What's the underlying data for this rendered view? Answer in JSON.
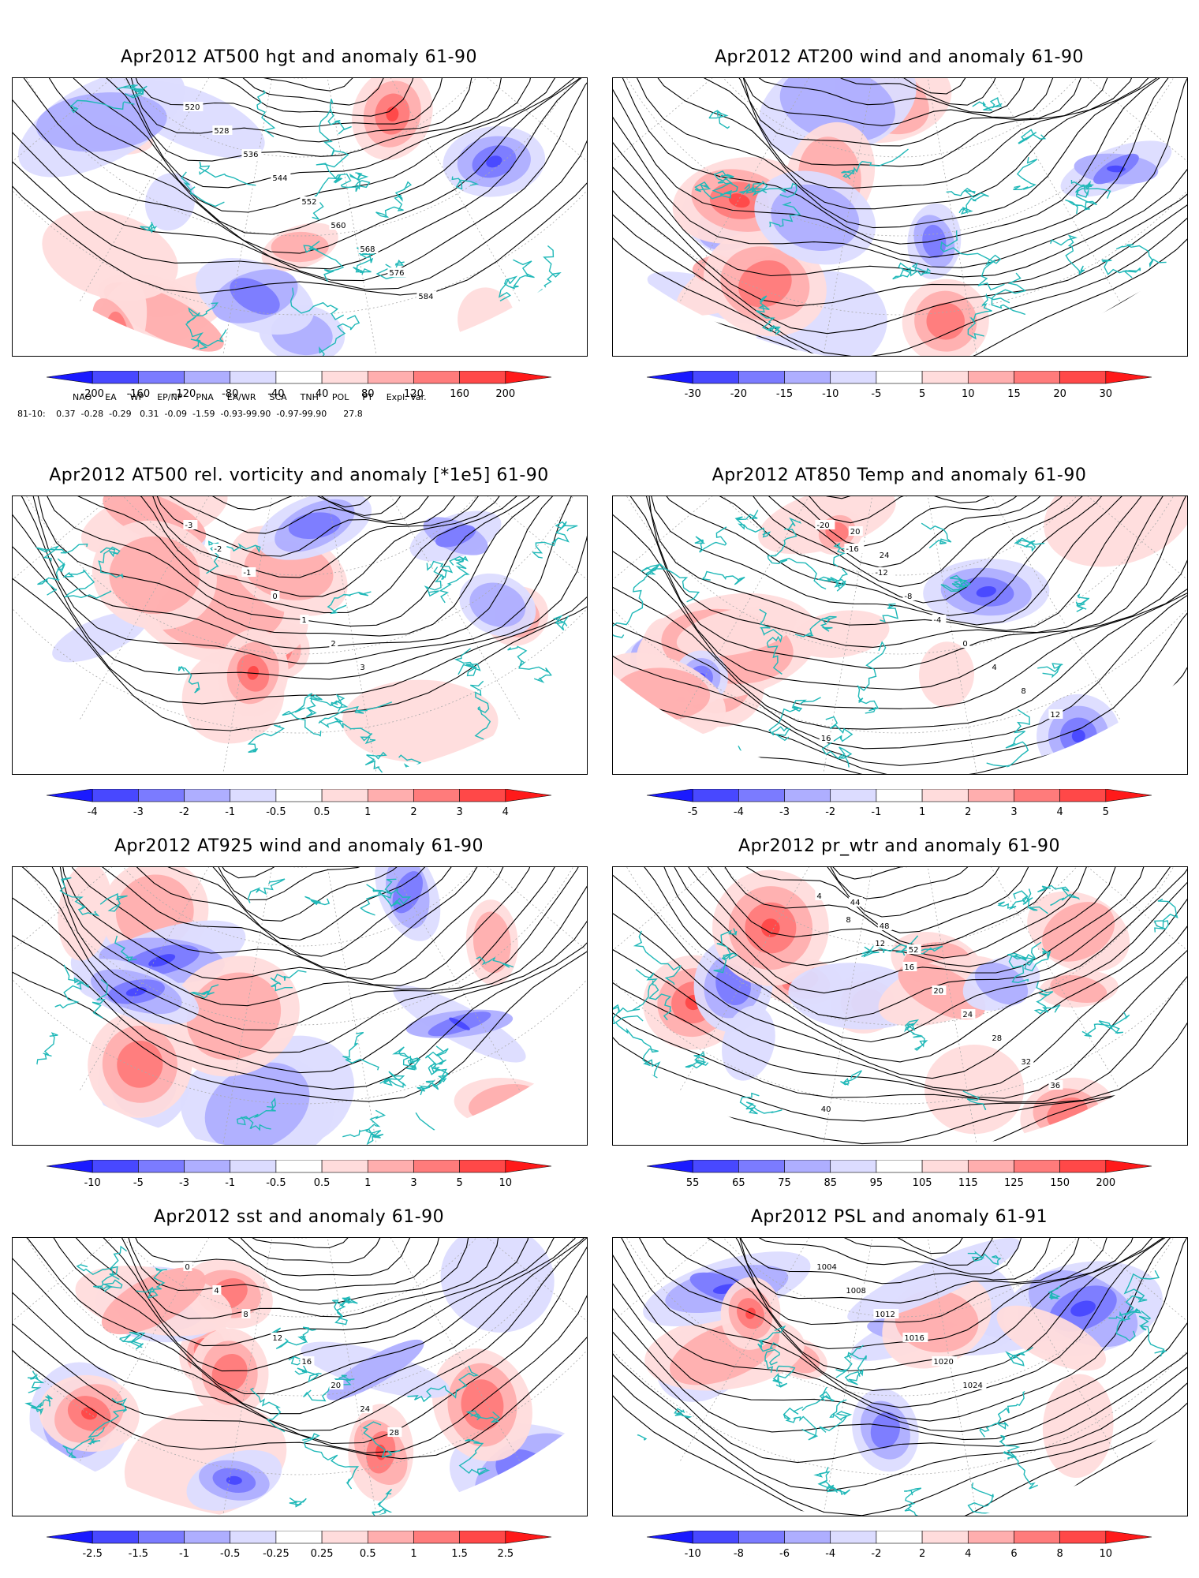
{
  "panels": [
    {
      "title": "Apr2012 AT500 hgt and anomaly 61-90",
      "colorbar": [
        "-200",
        "-160",
        "-120",
        "-80",
        "-40",
        "40",
        "80",
        "120",
        "160",
        "200"
      ],
      "contour_labels": [
        "520",
        "528",
        "536",
        "544",
        "552",
        "560",
        "568",
        "576",
        "584"
      ],
      "colorscale": "anom10"
    },
    {
      "title": "Apr2012 AT200 wind and anomaly 61-90",
      "colorbar": [
        "-30",
        "-20",
        "-15",
        "-10",
        "-5",
        "5",
        "10",
        "15",
        "20",
        "30"
      ],
      "contour_labels": [],
      "colorscale": "anom10"
    },
    {
      "title": "Apr2012 AT500 rel. vorticity and anomaly [*1e5] 61-90",
      "colorbar": [
        "-4",
        "-3",
        "-2",
        "-1",
        "-0.5",
        "0.5",
        "1",
        "2",
        "3",
        "4"
      ],
      "contour_labels": [
        "-3",
        "-2",
        "-1",
        "0",
        "1",
        "2",
        "3"
      ],
      "colorscale": "anom10"
    },
    {
      "title": "Apr2012 AT850 Temp and anomaly 61-90",
      "colorbar": [
        "-5",
        "-4",
        "-3",
        "-2",
        "-1",
        "1",
        "2",
        "3",
        "4",
        "5"
      ],
      "contour_labels": [
        "-20",
        "-16",
        "-12",
        "-8",
        "-4",
        "0",
        "4",
        "8",
        "12",
        "16",
        "20",
        "24"
      ],
      "colorscale": "anom10"
    },
    {
      "title": "Apr2012 AT925 wind and anomaly 61-90",
      "colorbar": [
        "-10",
        "-5",
        "-3",
        "-1",
        "-0.5",
        "0.5",
        "1",
        "3",
        "5",
        "10"
      ],
      "contour_labels": [],
      "colorscale": "anom10"
    },
    {
      "title": "Apr2012 pr_wtr and anomaly 61-90",
      "colorbar": [
        "55",
        "65",
        "75",
        "85",
        "95",
        "105",
        "115",
        "125",
        "150",
        "200"
      ],
      "contour_labels": [
        "4",
        "8",
        "12",
        "16",
        "20",
        "24",
        "28",
        "32",
        "36",
        "40",
        "44",
        "48",
        "52"
      ],
      "colorscale": "anom10"
    },
    {
      "title": "Apr2012 sst and anomaly 61-90",
      "colorbar": [
        "-2.5",
        "-1.5",
        "-1",
        "-0.5",
        "-0.25",
        "0.25",
        "0.5",
        "1",
        "1.5",
        "2.5"
      ],
      "contour_labels": [
        "0",
        "4",
        "8",
        "12",
        "16",
        "20",
        "24",
        "28"
      ],
      "colorscale": "anom10"
    },
    {
      "title": "Apr2012 PSL and anomaly 61-91",
      "colorbar": [
        "-10",
        "-8",
        "-6",
        "-4",
        "-2",
        "2",
        "4",
        "6",
        "8",
        "10"
      ],
      "contour_labels": [
        "1004",
        "1008",
        "1012",
        "1016",
        "1020",
        "1024"
      ],
      "colorscale": "anom10"
    }
  ],
  "indices": {
    "header": [
      "NAO",
      "EA",
      "WP",
      "EP/NP",
      "PNA",
      "EA/WR",
      "SCA",
      "TNH",
      "POL",
      "PT",
      "Expl. Var."
    ],
    "row_label": "81-10:",
    "row_values": "0.37  -0.28  -0.29   0.31  -0.09  -1.59  -0.93-99.90  -0.97-99.90      27.8"
  },
  "colors": {
    "coast": "#20b8b8",
    "blue_dark": "#1a1aff",
    "red_dark": "#ff1a1a"
  }
}
